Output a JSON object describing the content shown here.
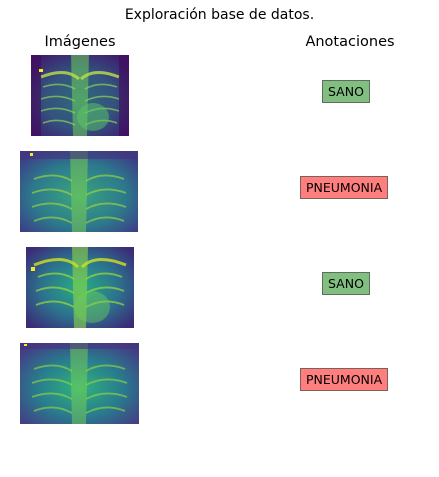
{
  "title": "Exploración base de datos.",
  "columns": {
    "images": "Imágenes",
    "annotations": "Anotaciones"
  },
  "rows": [
    {
      "label": "SANO",
      "status": "sano"
    },
    {
      "label": "PNEUMONIA",
      "status": "pneumonia"
    },
    {
      "label": "SANO",
      "status": "sano"
    },
    {
      "label": "PNEUMONIA",
      "status": "pneumonia"
    }
  ],
  "colors": {
    "sano": "#80bf80",
    "pneumonia": "#ff7f7f",
    "image_dark": "#440154",
    "image_mid": "#21918c",
    "image_bright": "#fde725"
  }
}
